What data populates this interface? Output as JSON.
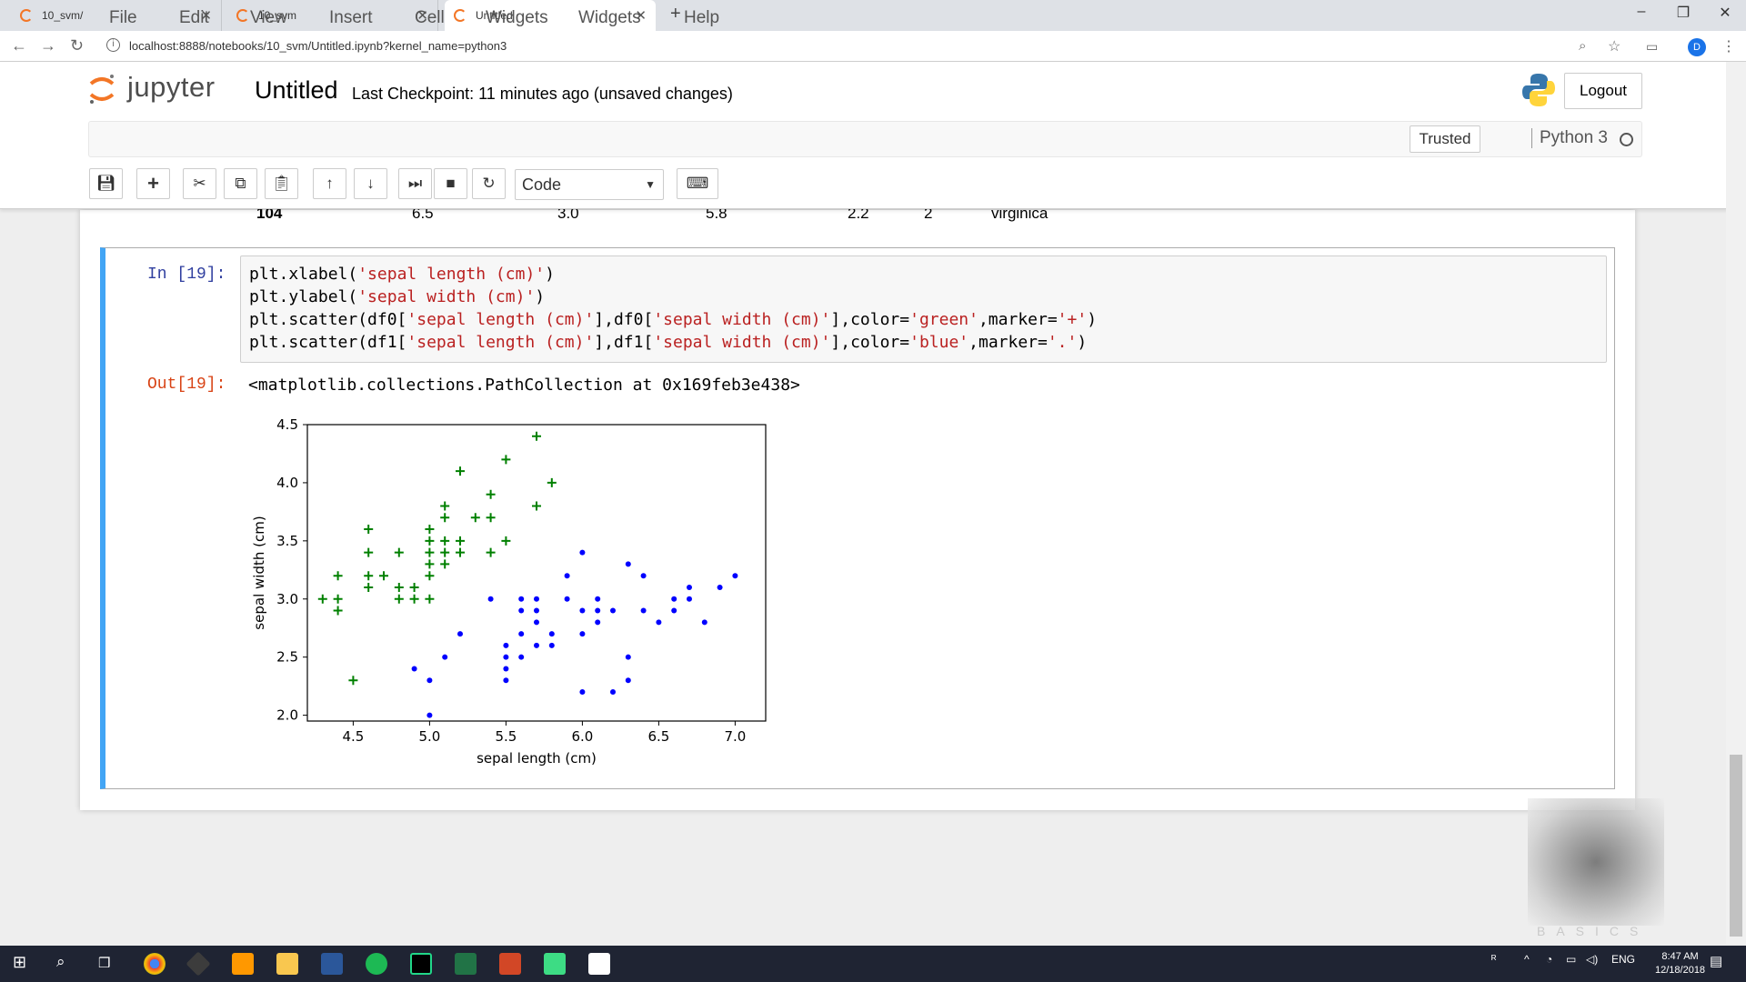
{
  "browser": {
    "tabs": [
      {
        "label": "10_svm/",
        "active": false
      },
      {
        "label": "10_svm",
        "active": false
      },
      {
        "label": "Untitled",
        "active": true
      }
    ],
    "url": "localhost:8888/notebooks/10_svm/Untitled.ipynb?kernel_name=python3",
    "profile_initial": "D"
  },
  "jupyter": {
    "logo_text": "jupyter",
    "notebook_title": "Untitled",
    "checkpoint": "Last Checkpoint: 11 minutes ago (unsaved changes)",
    "logout_label": "Logout",
    "trusted_label": "Trusted",
    "kernel_name": "Python 3",
    "menu": [
      "File",
      "Edit",
      "View",
      "Insert",
      "Cell",
      "Widgets",
      "Help"
    ],
    "cell_type": "Code",
    "accent_color": "#42a5f5"
  },
  "dataframe_row": {
    "index": "104",
    "values": [
      "6.5",
      "3.0",
      "5.8",
      "2.2",
      "2",
      "virginica"
    ]
  },
  "cell": {
    "in_prompt": "In [19]:",
    "out_prompt": "Out[19]:",
    "code_lines": [
      "plt.xlabel('sepal length (cm)')",
      "plt.ylabel('sepal width (cm)')",
      "plt.scatter(df0['sepal length (cm)'],df0['sepal width (cm)'],color='green',marker='+')",
      "plt.scatter(df1['sepal length (cm)'],df1['sepal width (cm)'],color='blue',marker='.')"
    ],
    "output_text": "<matplotlib.collections.PathCollection at 0x169feb3e438>"
  },
  "chart_data": {
    "type": "scatter",
    "xlabel": "sepal length (cm)",
    "ylabel": "sepal width (cm)",
    "xlim": [
      4.2,
      7.2
    ],
    "ylim": [
      1.95,
      4.5
    ],
    "xticks": [
      "4.5",
      "5.0",
      "5.5",
      "6.0",
      "6.5",
      "7.0"
    ],
    "yticks": [
      "2.0",
      "2.5",
      "3.0",
      "3.5",
      "4.0",
      "4.5"
    ],
    "series": [
      {
        "color": "green",
        "marker": "+",
        "points": [
          [
            4.3,
            3.0
          ],
          [
            4.4,
            3.2
          ],
          [
            4.4,
            3.0
          ],
          [
            4.4,
            2.9
          ],
          [
            4.5,
            2.3
          ],
          [
            4.6,
            3.6
          ],
          [
            4.6,
            3.4
          ],
          [
            4.6,
            3.2
          ],
          [
            4.6,
            3.1
          ],
          [
            4.7,
            3.2
          ],
          [
            4.8,
            3.4
          ],
          [
            4.8,
            3.1
          ],
          [
            4.8,
            3.0
          ],
          [
            4.9,
            3.1
          ],
          [
            4.9,
            3.0
          ],
          [
            5.0,
            3.6
          ],
          [
            5.0,
            3.5
          ],
          [
            5.0,
            3.4
          ],
          [
            5.0,
            3.3
          ],
          [
            5.0,
            3.2
          ],
          [
            5.0,
            3.0
          ],
          [
            5.1,
            3.8
          ],
          [
            5.1,
            3.7
          ],
          [
            5.1,
            3.5
          ],
          [
            5.1,
            3.4
          ],
          [
            5.1,
            3.3
          ],
          [
            5.2,
            4.1
          ],
          [
            5.2,
            3.5
          ],
          [
            5.2,
            3.4
          ],
          [
            5.3,
            3.7
          ],
          [
            5.4,
            3.9
          ],
          [
            5.4,
            3.7
          ],
          [
            5.4,
            3.4
          ],
          [
            5.5,
            4.2
          ],
          [
            5.5,
            3.5
          ],
          [
            5.7,
            4.4
          ],
          [
            5.7,
            3.8
          ],
          [
            5.8,
            4.0
          ]
        ]
      },
      {
        "color": "blue",
        "marker": ".",
        "points": [
          [
            4.9,
            2.4
          ],
          [
            5.0,
            2.3
          ],
          [
            5.0,
            2.0
          ],
          [
            5.1,
            2.5
          ],
          [
            5.2,
            2.7
          ],
          [
            5.4,
            3.0
          ],
          [
            5.5,
            2.6
          ],
          [
            5.5,
            2.5
          ],
          [
            5.5,
            2.4
          ],
          [
            5.5,
            2.3
          ],
          [
            5.6,
            3.0
          ],
          [
            5.6,
            2.9
          ],
          [
            5.6,
            2.7
          ],
          [
            5.6,
            2.5
          ],
          [
            5.7,
            3.0
          ],
          [
            5.7,
            2.9
          ],
          [
            5.7,
            2.8
          ],
          [
            5.7,
            2.6
          ],
          [
            5.8,
            2.7
          ],
          [
            5.8,
            2.6
          ],
          [
            5.9,
            3.2
          ],
          [
            5.9,
            3.0
          ],
          [
            6.0,
            3.4
          ],
          [
            6.0,
            2.9
          ],
          [
            6.0,
            2.7
          ],
          [
            6.0,
            2.2
          ],
          [
            6.1,
            3.0
          ],
          [
            6.1,
            2.9
          ],
          [
            6.1,
            2.8
          ],
          [
            6.2,
            2.9
          ],
          [
            6.2,
            2.2
          ],
          [
            6.3,
            3.3
          ],
          [
            6.3,
            2.5
          ],
          [
            6.3,
            2.3
          ],
          [
            6.4,
            3.2
          ],
          [
            6.4,
            2.9
          ],
          [
            6.5,
            2.8
          ],
          [
            6.6,
            3.0
          ],
          [
            6.6,
            2.9
          ],
          [
            6.7,
            3.1
          ],
          [
            6.7,
            3.0
          ],
          [
            6.8,
            2.8
          ],
          [
            6.9,
            3.1
          ],
          [
            7.0,
            3.2
          ]
        ]
      }
    ]
  },
  "taskbar": {
    "language": "ENG",
    "time": "8:47 AM",
    "date": "12/18/2018"
  }
}
